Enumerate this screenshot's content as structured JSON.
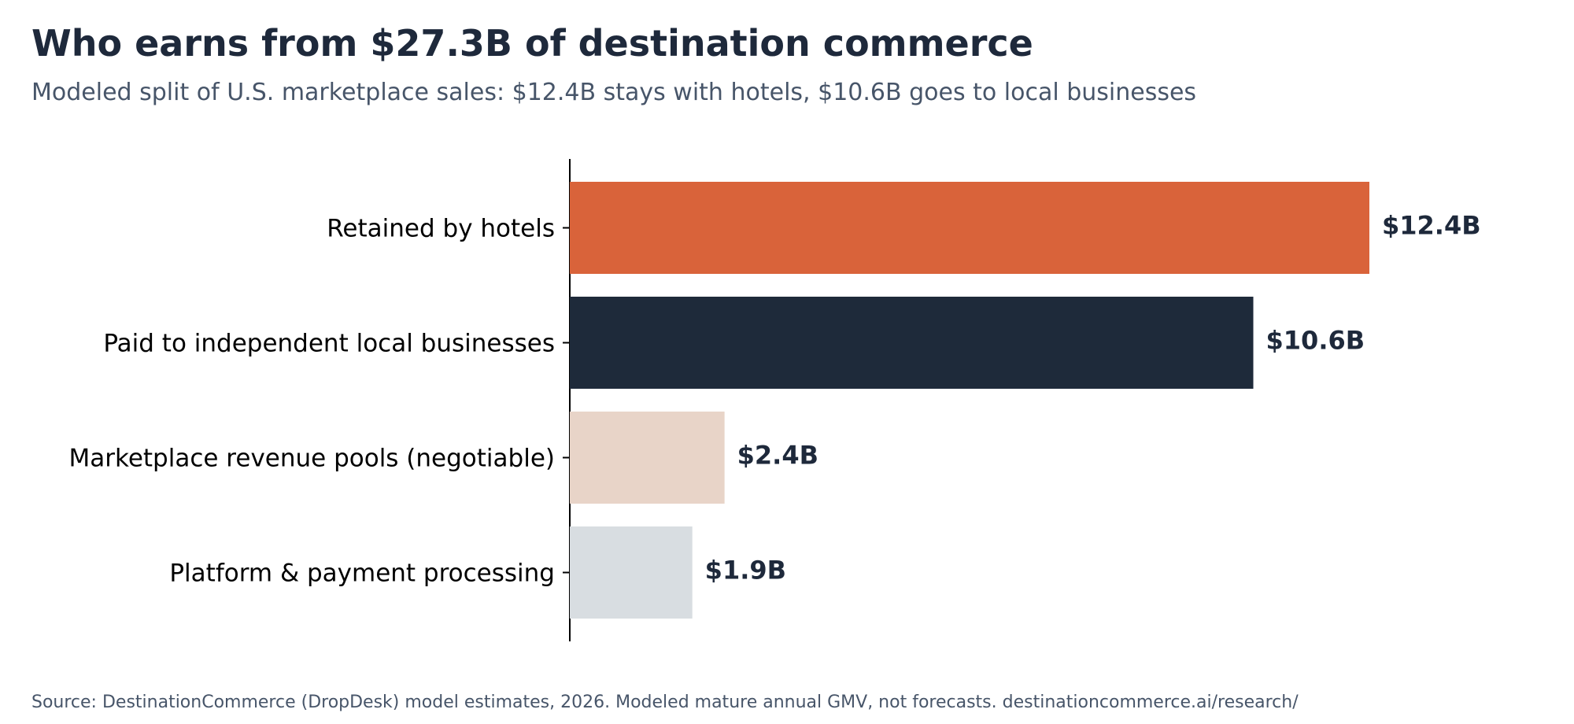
{
  "chart_data": {
    "type": "bar",
    "orientation": "horizontal",
    "title": "Who earns from $27.3B of destination commerce",
    "subtitle": "Modeled split of U.S. marketplace sales: $12.4B stays with hotels, $10.6B goes to local businesses",
    "source": "Source: DestinationCommerce (DropDesk) model estimates, 2026. Modeled mature annual GMV, not forecasts. destinationcommerce.ai/research/",
    "categories": [
      "Retained by hotels",
      "Paid to independent local businesses",
      "Marketplace revenue pools (negotiable)",
      "Platform & payment processing"
    ],
    "values": [
      12.4,
      10.6,
      2.4,
      1.9
    ],
    "value_labels": [
      "$12.4B",
      "$10.6B",
      "$2.4B",
      "$1.9B"
    ],
    "colors": [
      "#d9633a",
      "#1e2a3a",
      "#e8d4c8",
      "#d8dde1"
    ],
    "xlim": [
      0,
      14
    ],
    "xlabel": "",
    "ylabel": "",
    "grid": false,
    "legend": "none"
  }
}
